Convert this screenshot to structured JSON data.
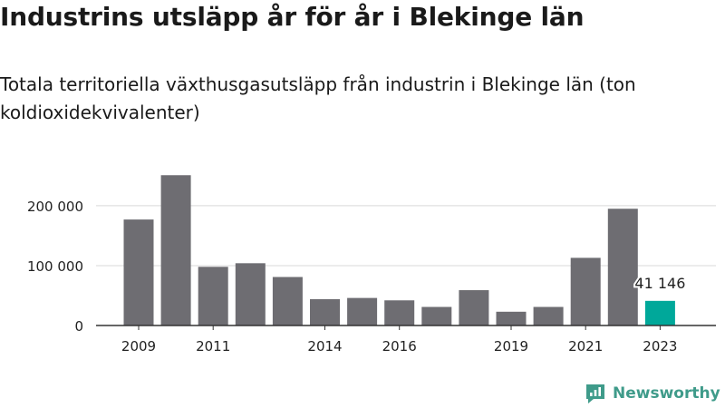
{
  "title": "Industrins utsläpp år för år i Blekinge län",
  "subtitle": "Totala territoriella växthusgasutsläpp från industrin i Blekinge län (ton koldioxidekvivalenter)",
  "brand": {
    "name": "Newsworthy",
    "icon": "newsworthy-logo-icon",
    "color": "#3f9b8a"
  },
  "colors": {
    "bar": "#6e6d72",
    "highlight": "#00a89a",
    "grid": "#d9d9d9",
    "axis": "#333333"
  },
  "chart_data": {
    "type": "bar",
    "categories": [
      "2009",
      "2010",
      "2011",
      "2012",
      "2013",
      "2014",
      "2015",
      "2016",
      "2017",
      "2018",
      "2019",
      "2020",
      "2021",
      "2022",
      "2023"
    ],
    "x_tick_labels": [
      "2009",
      "2011",
      "2014",
      "2016",
      "2019",
      "2021",
      "2023"
    ],
    "values": [
      177000,
      251000,
      98000,
      104000,
      81000,
      44000,
      46000,
      42000,
      31000,
      59000,
      23000,
      31000,
      113000,
      195000,
      41146
    ],
    "highlight_index": 14,
    "highlight_label": "41 146",
    "y_ticks": [
      0,
      100000,
      200000
    ],
    "y_tick_labels": [
      "0",
      "100 000",
      "200 000"
    ],
    "ylim": [
      0,
      265000
    ],
    "grid": true
  }
}
